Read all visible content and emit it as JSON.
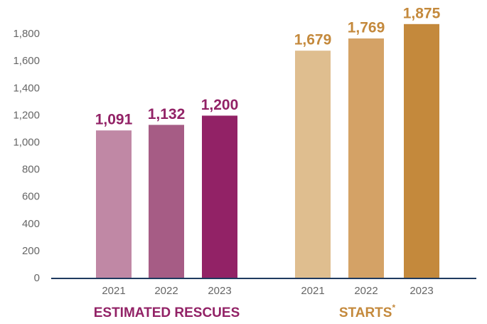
{
  "chart_data": {
    "type": "bar",
    "ylim": [
      0,
      2000
    ],
    "yticks": [
      0,
      200,
      400,
      600,
      800,
      {
        "value": 1000,
        "label": "1,000"
      },
      {
        "value": 1200,
        "label": "1,200"
      },
      {
        "value": 1400,
        "label": "1,400"
      },
      {
        "value": 1600,
        "label": "1,600"
      },
      {
        "value": 1800,
        "label": "1,800"
      }
    ],
    "grid": false,
    "groups": [
      {
        "name": "ESTIMATED RESCUES",
        "label_color": "#922266",
        "categories": [
          "2021",
          "2022",
          "2023"
        ],
        "values": [
          1091,
          1132,
          1200
        ],
        "value_labels": [
          "1,091",
          "1,132",
          "1,200"
        ],
        "colors": [
          "#c088a5",
          "#a65c85",
          "#922266"
        ]
      },
      {
        "name": "STARTS",
        "note_mark": "*",
        "label_color": "#c4893c",
        "categories": [
          "2021",
          "2022",
          "2023"
        ],
        "values": [
          1679,
          1769,
          1875
        ],
        "value_labels": [
          "1,679",
          "1,769",
          "1,875"
        ],
        "colors": [
          "#dfbe8f",
          "#d4a266",
          "#c4893c"
        ]
      }
    ]
  }
}
